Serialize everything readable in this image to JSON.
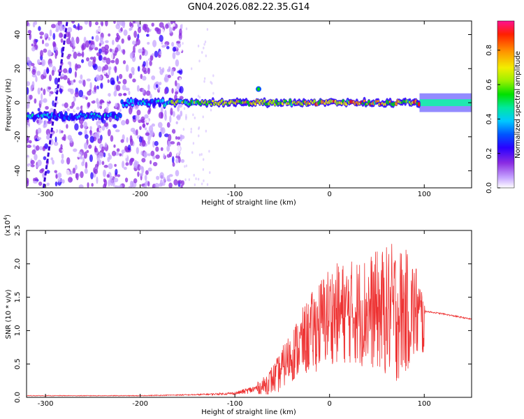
{
  "title": "GN04.2026.082.22.35.G14",
  "chart_data": [
    {
      "type": "heatmap",
      "xlabel": "Height of straight line (km)",
      "ylabel": "Frequency (Hz)",
      "xlim": [
        -320,
        150
      ],
      "ylim": [
        -50,
        48
      ],
      "xticks": [
        -300,
        -200,
        -100,
        0,
        100
      ],
      "yticks": [
        -40,
        -20,
        0,
        20,
        40
      ],
      "colorbar": {
        "label": "Normalized spectral amplitude",
        "range": [
          0,
          0.97
        ],
        "ticks": [
          0.0,
          0.2,
          0.4,
          0.6,
          0.8
        ]
      },
      "features": {
        "ridge_frequency_hz": 0,
        "diagonal_streak": {
          "x": [
            -302,
            -277
          ],
          "y": [
            -50,
            48
          ]
        }
      }
    },
    {
      "type": "line",
      "xlabel": "Height of straight line (km)",
      "ylabel": "SNR (10 * v/v)",
      "y_multiplier": "(x10^4)",
      "y_multiplier_base": "(x10",
      "y_multiplier_exp": "4",
      "y_multiplier_close": ")",
      "xlim": [
        -320,
        150
      ],
      "ylim": [
        0,
        2.5
      ],
      "xticks": [
        -300,
        -200,
        -100,
        0,
        100
      ],
      "yticks": [
        0.0,
        0.5,
        1.0,
        1.5,
        2.0,
        2.5
      ],
      "series": [
        {
          "color": "#ee3333",
          "envelope": {
            "x": [
              -320,
              -200,
              -140,
              -100,
              -80,
              -70,
              -55,
              -45,
              -30,
              -10,
              0,
              20,
              50,
              70,
              90,
              100,
              101,
              120,
              150
            ],
            "y_low": [
              0.02,
              0.02,
              0.03,
              0.04,
              0.06,
              0.04,
              0.05,
              0.2,
              0.3,
              0.4,
              0.5,
              0.5,
              0.4,
              0.2,
              0.5,
              0.6,
              1.28,
              1.24,
              1.16
            ],
            "y_high": [
              0.03,
              0.03,
              0.05,
              0.08,
              0.18,
              0.3,
              0.6,
              0.9,
              1.3,
              1.8,
              2.0,
              2.05,
              2.2,
              2.35,
              2.1,
              1.6,
              1.3,
              1.26,
              1.18
            ]
          }
        }
      ]
    }
  ]
}
